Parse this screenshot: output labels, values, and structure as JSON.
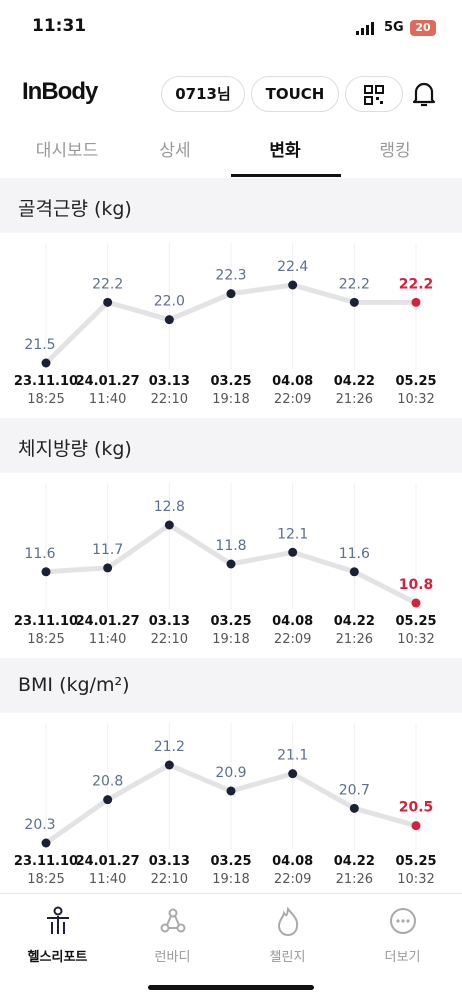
{
  "status_bar": {
    "time": "11:31",
    "network": "5G",
    "battery": "20"
  },
  "header": {
    "logo": "InBody",
    "user": "0713님",
    "touch": "TOUCH"
  },
  "tabs": [
    "대시보드",
    "상세",
    "변화",
    "랭킹"
  ],
  "chart_data": [
    {
      "type": "line",
      "title": "골격근량 (kg)",
      "categories": [
        "23.11.10",
        "24.01.27",
        "03.13",
        "03.25",
        "04.08",
        "04.22",
        "05.25"
      ],
      "times": [
        "18:25",
        "11:40",
        "22:10",
        "19:18",
        "22:09",
        "21:26",
        "10:32"
      ],
      "values": [
        21.5,
        22.2,
        22.0,
        22.3,
        22.4,
        22.2,
        22.2
      ],
      "value_labels": [
        "21.5",
        "22.2",
        "22.0",
        "22.3",
        "22.4",
        "22.2",
        "22.2"
      ],
      "color": "#1c2033",
      "highlight_color": "#d6213b",
      "line_color": "#e3e3e6",
      "label_color": "#5d6f8a"
    },
    {
      "type": "line",
      "title": "체지방량 (kg)",
      "categories": [
        "23.11.10",
        "24.01.27",
        "03.13",
        "03.25",
        "04.08",
        "04.22",
        "05.25"
      ],
      "times": [
        "18:25",
        "11:40",
        "22:10",
        "19:18",
        "22:09",
        "21:26",
        "10:32"
      ],
      "values": [
        11.6,
        11.7,
        12.8,
        11.8,
        12.1,
        11.6,
        10.8
      ],
      "value_labels": [
        "11.6",
        "11.7",
        "12.8",
        "11.8",
        "12.1",
        "11.6",
        "10.8"
      ],
      "color": "#1c2033",
      "highlight_color": "#d6213b",
      "line_color": "#e3e3e6",
      "label_color": "#5d6f8a"
    },
    {
      "type": "line",
      "title": "BMI (kg/m²)",
      "categories": [
        "23.11.10",
        "24.01.27",
        "03.13",
        "03.25",
        "04.08",
        "04.22",
        "05.25"
      ],
      "times": [
        "18:25",
        "11:40",
        "22:10",
        "19:18",
        "22:09",
        "21:26",
        "10:32"
      ],
      "values": [
        20.3,
        20.8,
        21.2,
        20.9,
        21.1,
        20.7,
        20.5
      ],
      "value_labels": [
        "20.3",
        "20.8",
        "21.2",
        "20.9",
        "21.1",
        "20.7",
        "20.5"
      ],
      "color": "#1c2033",
      "highlight_color": "#d6213b",
      "line_color": "#e3e3e6",
      "label_color": "#5d6f8a"
    }
  ],
  "nav": [
    "헬스리포트",
    "런바디",
    "챌린지",
    "더보기"
  ]
}
